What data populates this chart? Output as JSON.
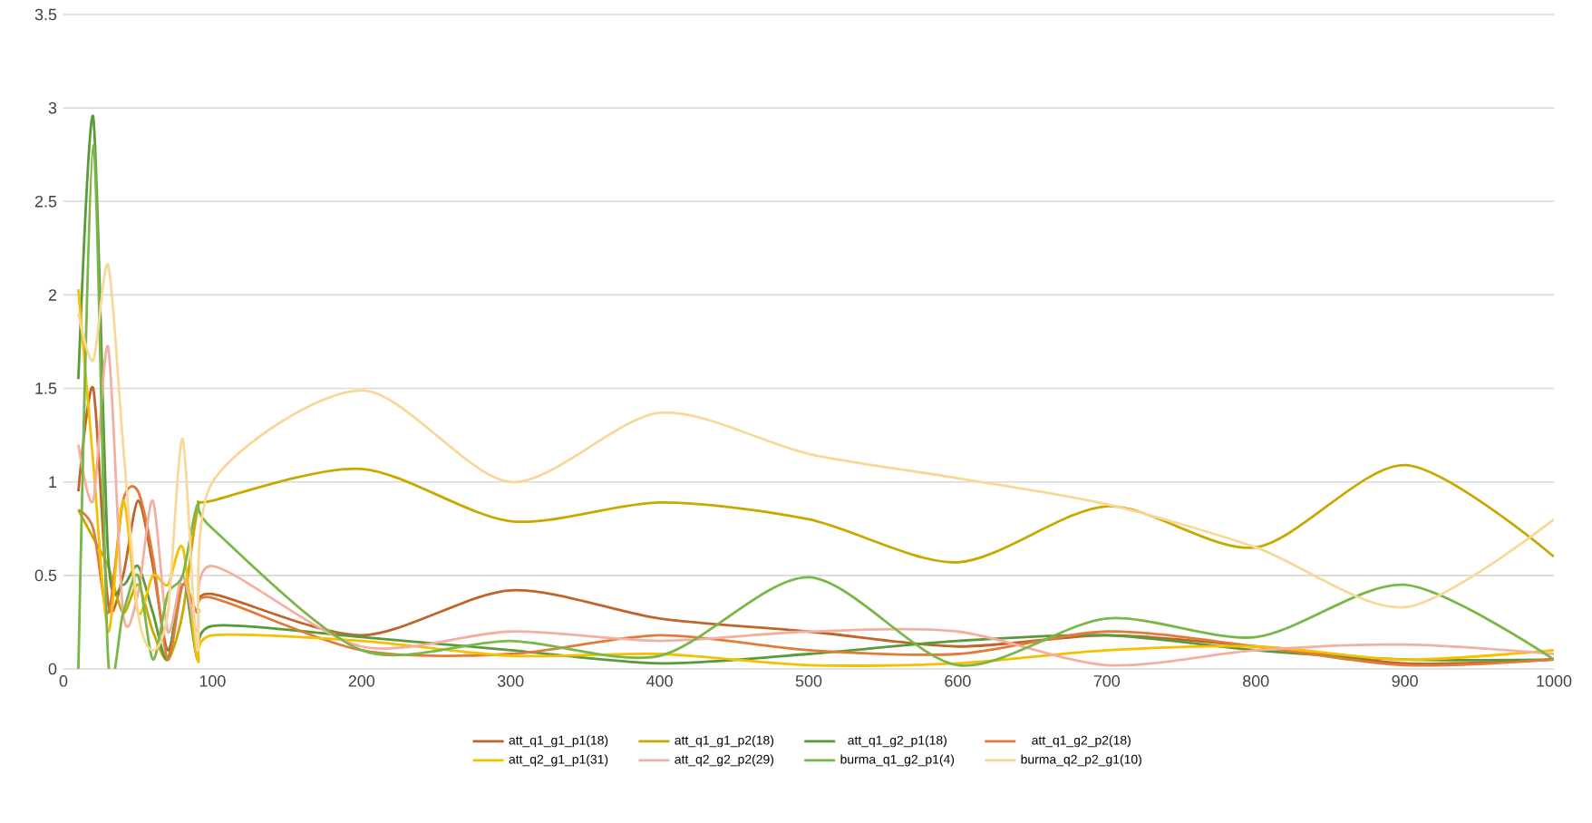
{
  "chart_data": {
    "type": "line",
    "x": [
      10,
      20,
      30,
      40,
      50,
      60,
      70,
      80,
      90,
      100,
      200,
      300,
      400,
      500,
      600,
      700,
      800,
      900,
      1000
    ],
    "xlim": [
      0,
      1000
    ],
    "xticks": [
      0,
      100,
      200,
      300,
      400,
      500,
      600,
      700,
      800,
      900,
      1000
    ],
    "ylim": [
      0,
      3.5
    ],
    "yticks": [
      0,
      0.5,
      1,
      1.5,
      2,
      2.5,
      3,
      3.5
    ],
    "grid": "y",
    "legend": "bottom",
    "marker": "none",
    "line_style": "solid",
    "series": [
      {
        "name": "att_q1_g1_p1(18)",
        "color": "#c0652a",
        "values": [
          0.95,
          1.5,
          0.35,
          0.5,
          0.9,
          0.55,
          0.1,
          0.45,
          0.3,
          0.4,
          0.18,
          0.42,
          0.27,
          0.2,
          0.12,
          0.18,
          0.12,
          0.03,
          0.05
        ]
      },
      {
        "name": "att_q1_g1_p2(18)",
        "color": "#c9a800",
        "values": [
          0.85,
          0.7,
          0.55,
          0.3,
          0.45,
          0.2,
          0.05,
          0.3,
          0.85,
          0.9,
          1.07,
          0.79,
          0.89,
          0.8,
          0.57,
          0.87,
          0.65,
          1.09,
          0.6
        ]
      },
      {
        "name": "att_q1_g2_p1(18)",
        "color": "#5a9a3a",
        "values": [
          1.55,
          2.95,
          0.6,
          0.45,
          0.55,
          0.3,
          0.05,
          0.5,
          0.05,
          0.23,
          0.17,
          0.1,
          0.03,
          0.08,
          0.15,
          0.18,
          0.1,
          0.05,
          0.05
        ]
      },
      {
        "name": "att_q1_g2_p2(18)",
        "color": "#e07b39",
        "values": [
          0.85,
          0.75,
          0.3,
          0.9,
          0.95,
          0.6,
          0.05,
          0.45,
          0.3,
          0.38,
          0.1,
          0.08,
          0.18,
          0.1,
          0.08,
          0.2,
          0.12,
          0.02,
          0.05
        ]
      },
      {
        "name": "att_q2_g1_p1(31)",
        "color": "#f5c000",
        "values": [
          2.03,
          1.1,
          0.2,
          0.9,
          0.3,
          0.5,
          0.45,
          0.65,
          0.05,
          0.18,
          0.15,
          0.07,
          0.08,
          0.02,
          0.03,
          0.1,
          0.12,
          0.05,
          0.1
        ]
      },
      {
        "name": "att_q2_g2_p2(29)",
        "color": "#f2b0a0",
        "values": [
          1.2,
          0.9,
          1.72,
          0.3,
          0.4,
          0.9,
          0.2,
          0.5,
          0.2,
          0.55,
          0.12,
          0.2,
          0.15,
          0.2,
          0.2,
          0.02,
          0.1,
          0.13,
          0.08
        ]
      },
      {
        "name": "burma_q1_g2_p1(4)",
        "color": "#7ab648",
        "values": [
          0,
          2.8,
          0.05,
          0.3,
          0.5,
          0.05,
          0.4,
          0.5,
          0.88,
          0.75,
          0.1,
          0.15,
          0.07,
          0.49,
          0.02,
          0.27,
          0.17,
          0.45,
          0.05
        ]
      },
      {
        "name": "burma_q2_p2_g1(10)",
        "color": "#f8d898",
        "values": [
          1.9,
          1.65,
          2.16,
          1.2,
          0.3,
          0.1,
          0.3,
          1.23,
          0.1,
          1.0,
          1.49,
          1.0,
          1.37,
          1.15,
          1.02,
          0.88,
          0.65,
          0.33,
          0.8
        ]
      }
    ]
  }
}
